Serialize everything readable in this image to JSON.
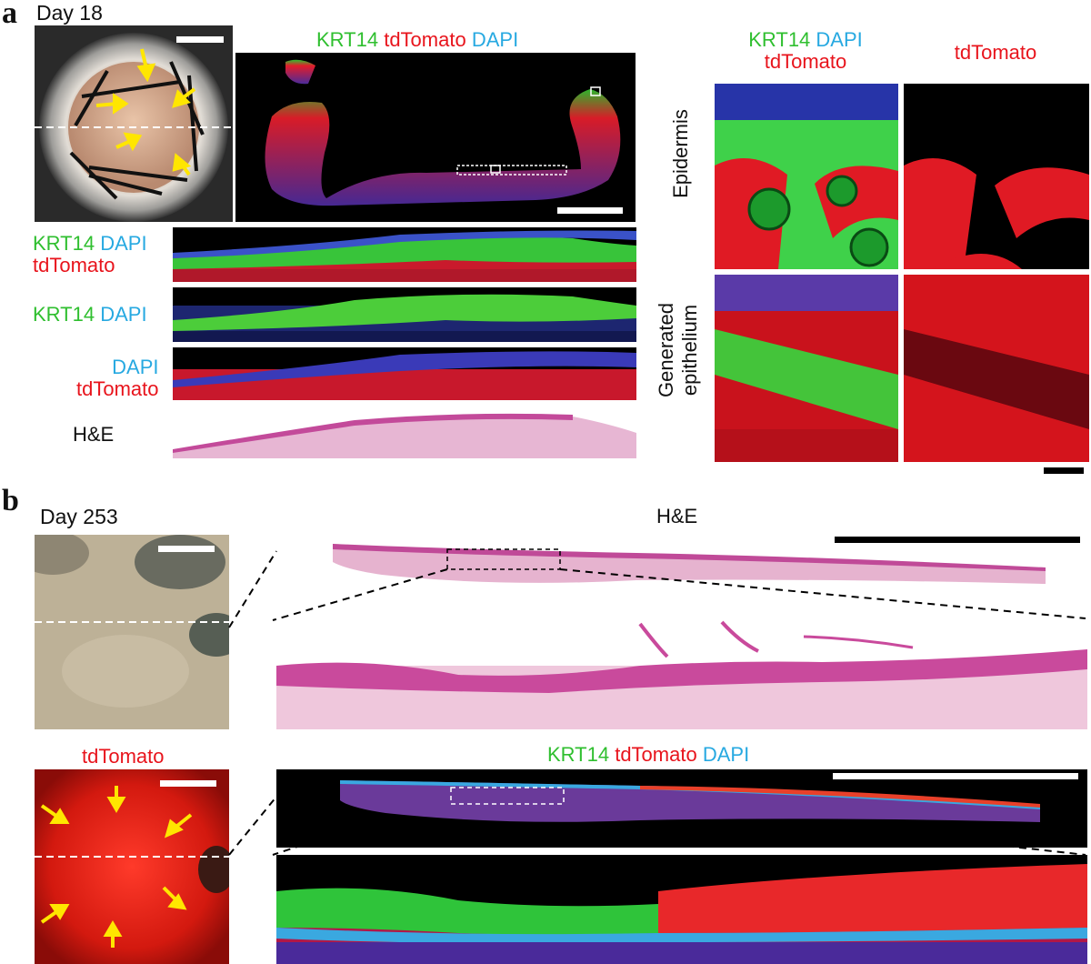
{
  "panel_a": {
    "letter": "a",
    "day": "Day 18",
    "overview_title": {
      "krt14": "KRT14",
      "tdtomato": "tdTomato",
      "dapi": "DAPI"
    },
    "rows": [
      {
        "krt14": "KRT14",
        "dapi": "DAPI",
        "tdtomato": "tdTomato"
      },
      {
        "krt14": "KRT14",
        "dapi": "DAPI"
      },
      {
        "dapi": "DAPI",
        "tdtomato": "tdTomato"
      },
      {
        "he": "H&E"
      }
    ],
    "right_col1": {
      "krt14": "KRT14",
      "dapi": "DAPI",
      "tdtomato": "tdTomato"
    },
    "right_col2": {
      "tdtomato": "tdTomato"
    },
    "row_epidermis": "Epidermis",
    "row_generated_1": "Generated",
    "row_generated_2": "epithelium"
  },
  "panel_b": {
    "letter": "b",
    "day": "Day 253",
    "he": "H&E",
    "tdtomato_label": "tdTomato",
    "fluor_title": {
      "krt14": "KRT14",
      "tdtomato": "tdTomato",
      "dapi": "DAPI"
    }
  },
  "colors": {
    "krt14": "#2fbf2f",
    "tdtomato": "#e8141c",
    "dapi": "#27a9e1",
    "arrow": "#ffe600"
  }
}
